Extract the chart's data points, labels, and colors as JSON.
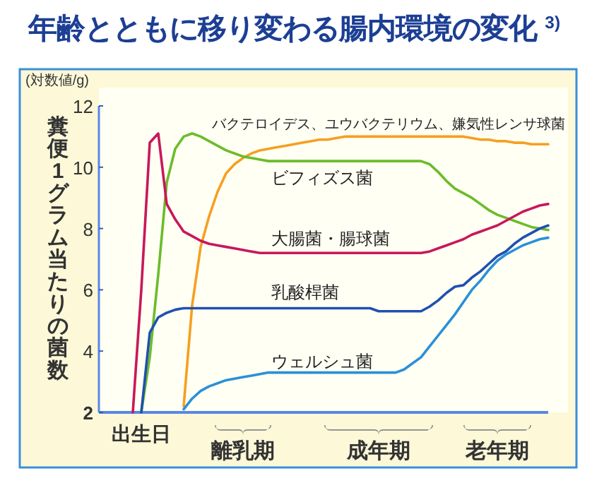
{
  "chart_data": {
    "type": "line",
    "title": "年齢とともに移り変わる腸内環境の変化 $^{3)}$",
    "ylabel": "糞便1グラム当たりの菌数",
    "annotations": [
      "(対数値/g)"
    ],
    "categories": [
      null,
      null,
      null,
      null,
      null,
      "出生日",
      null,
      null,
      null,
      null,
      null,
      null,
      null,
      null,
      null,
      null,
      null,
      "離乳期",
      null,
      null,
      null,
      null,
      null,
      null,
      null,
      null,
      null,
      null,
      null,
      null,
      null,
      null,
      null,
      "成年期",
      null,
      null,
      null,
      null,
      null,
      null,
      null,
      null,
      null,
      null,
      null,
      null,
      null,
      "老年期",
      null,
      null,
      null,
      null,
      null,
      null
    ],
    "ylim": [
      2,
      12
    ],
    "yticks": [
      2,
      4,
      6,
      8,
      10,
      12
    ],
    "grid": false,
    "marker": "none",
    "line_style": "solid",
    "series": [
      {
        "name": "バクテロイデス、ユウバクテリウム、嫌気性レンサ球菌",
        "color": "#f5a020",
        "values": [
          null,
          null,
          null,
          null,
          null,
          null,
          null,
          null,
          null,
          null,
          2.2,
          5.5,
          7.4,
          8.4,
          9.2,
          9.8,
          10.1,
          10.3,
          10.45,
          10.55,
          10.6,
          10.65,
          10.7,
          10.75,
          10.8,
          10.85,
          10.9,
          10.9,
          10.95,
          11.0,
          11.0,
          11.0,
          11.0,
          11.0,
          11.0,
          11.0,
          11.0,
          11.0,
          11.0,
          11.0,
          11.0,
          11.0,
          11.0,
          11.0,
          10.95,
          10.9,
          10.9,
          10.85,
          10.85,
          10.8,
          10.8,
          10.75,
          10.75,
          10.75
        ]
      },
      {
        "name": "ビフィズス菌",
        "color": "#6cbc2a",
        "values": [
          null,
          null,
          null,
          null,
          null,
          2,
          3.8,
          6.5,
          9.5,
          10.6,
          11.0,
          11.1,
          11.0,
          10.85,
          10.7,
          10.55,
          10.45,
          10.35,
          10.3,
          10.25,
          10.2,
          10.2,
          10.2,
          10.2,
          10.2,
          10.2,
          10.2,
          10.2,
          10.2,
          10.2,
          10.2,
          10.2,
          10.2,
          10.2,
          10.2,
          10.2,
          10.2,
          10.2,
          10.2,
          10.1,
          9.85,
          9.55,
          9.3,
          9.15,
          9.0,
          8.8,
          8.6,
          8.45,
          8.35,
          8.25,
          8.15,
          8.05,
          8.0,
          7.95
        ]
      },
      {
        "name": "大腸菌・腸球菌",
        "color": "#c8185a",
        "values": [
          null,
          null,
          null,
          null,
          2,
          6.0,
          10.8,
          11.1,
          8.8,
          8.3,
          7.9,
          7.75,
          7.6,
          7.5,
          7.45,
          7.4,
          7.35,
          7.3,
          7.25,
          7.2,
          7.2,
          7.2,
          7.2,
          7.2,
          7.2,
          7.2,
          7.2,
          7.2,
          7.2,
          7.2,
          7.2,
          7.2,
          7.2,
          7.2,
          7.2,
          7.2,
          7.2,
          7.2,
          7.2,
          7.25,
          7.35,
          7.45,
          7.55,
          7.65,
          7.8,
          7.9,
          8.0,
          8.1,
          8.25,
          8.4,
          8.55,
          8.65,
          8.75,
          8.8
        ]
      },
      {
        "name": "乳酸桿菌",
        "color": "#2050b0",
        "values": [
          null,
          null,
          null,
          null,
          null,
          2,
          4.6,
          5.1,
          5.25,
          5.35,
          5.4,
          5.4,
          5.4,
          5.4,
          5.4,
          5.4,
          5.4,
          5.4,
          5.4,
          5.4,
          5.4,
          5.4,
          5.4,
          5.4,
          5.4,
          5.4,
          5.4,
          5.4,
          5.4,
          5.4,
          5.4,
          5.4,
          5.4,
          5.3,
          5.3,
          5.3,
          5.3,
          5.3,
          5.3,
          5.45,
          5.65,
          5.9,
          6.1,
          6.15,
          6.4,
          6.6,
          6.85,
          7.1,
          7.25,
          7.5,
          7.7,
          7.85,
          8.0,
          8.1
        ]
      },
      {
        "name": "ウェルシュ菌",
        "color": "#2a90d8",
        "values": [
          null,
          null,
          null,
          null,
          null,
          null,
          null,
          null,
          null,
          null,
          2.1,
          2.45,
          2.7,
          2.85,
          2.95,
          3.05,
          3.1,
          3.15,
          3.2,
          3.25,
          3.3,
          3.3,
          3.3,
          3.3,
          3.3,
          3.3,
          3.3,
          3.3,
          3.3,
          3.3,
          3.3,
          3.3,
          3.3,
          3.3,
          3.3,
          3.3,
          3.4,
          3.6,
          3.8,
          4.15,
          4.5,
          4.85,
          5.2,
          5.6,
          6.0,
          6.3,
          6.65,
          6.95,
          7.15,
          7.3,
          7.45,
          7.55,
          7.65,
          7.7
        ]
      }
    ]
  }
}
